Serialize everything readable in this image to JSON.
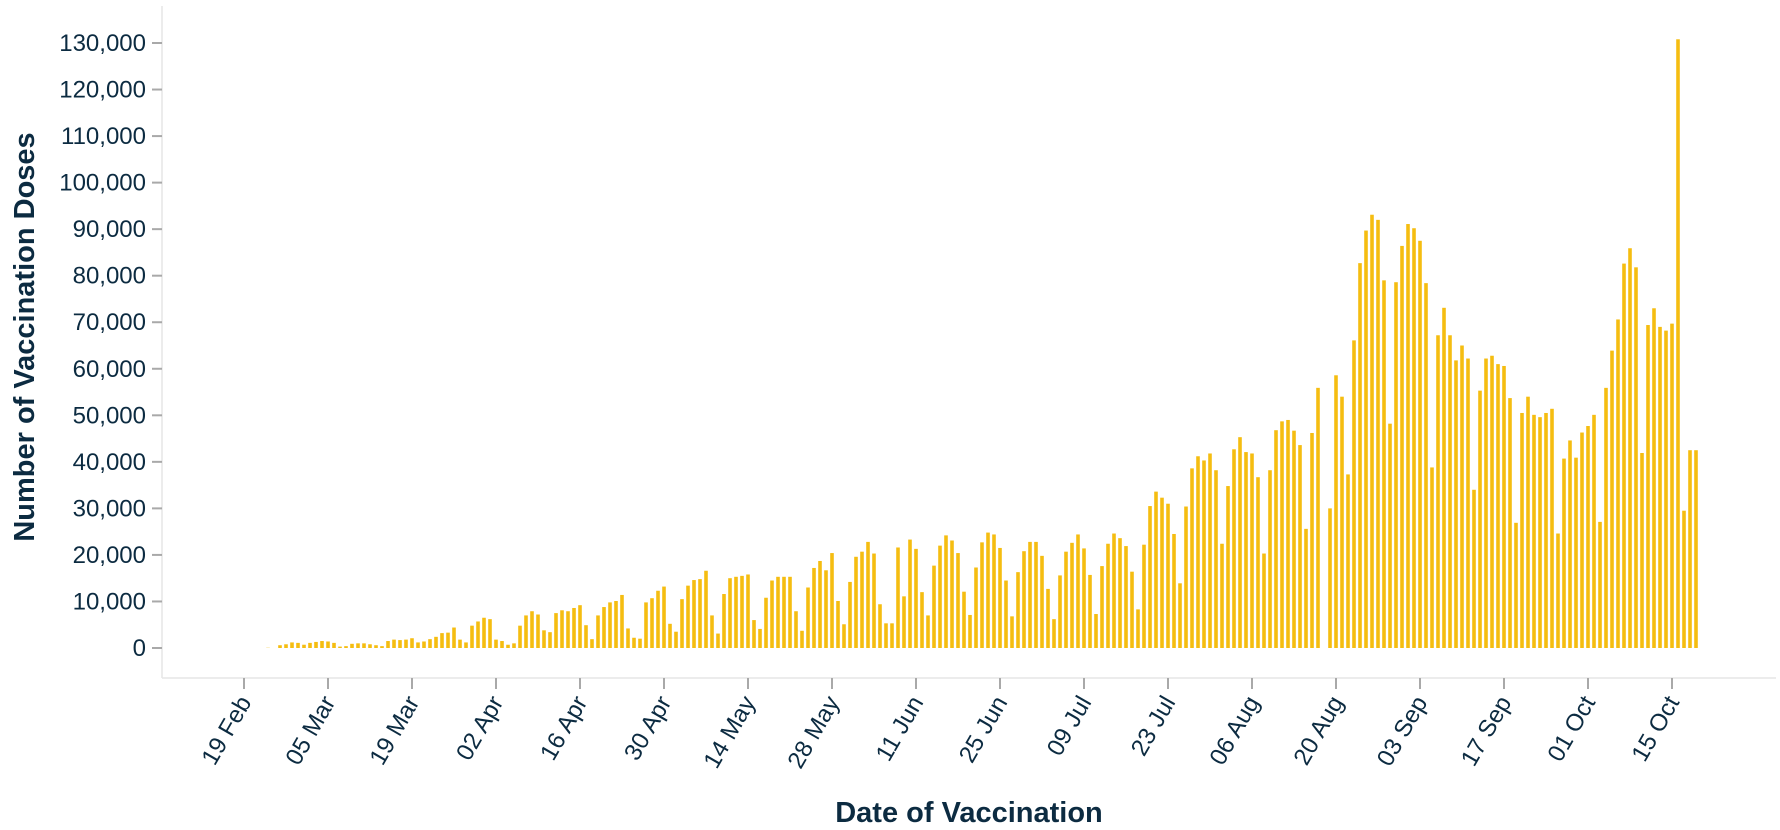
{
  "chart_data": {
    "type": "bar",
    "xlabel": "Date of Vaccination",
    "ylabel": "Number of Vaccination Doses",
    "ylim": [
      0,
      130000
    ],
    "y_ticks": [
      "0",
      "10,000",
      "20,000",
      "30,000",
      "40,000",
      "50,000",
      "60,000",
      "70,000",
      "80,000",
      "90,000",
      "100,000",
      "110,000",
      "120,000",
      "130,000"
    ],
    "x_ticks": [
      "19 Feb",
      "05 Mar",
      "19 Mar",
      "02 Apr",
      "16 Apr",
      "30 Apr",
      "14 May",
      "28 May",
      "11 Jun",
      "25 Jun",
      "09 Jul",
      "23 Jul",
      "06 Aug",
      "20 Aug",
      "03 Sep",
      "17 Sep",
      "01 Oct",
      "15 Oct"
    ],
    "x_start_date": "2021-02-19",
    "x_end_date": "2021-10-20",
    "grid": false,
    "bar_color": "#f5bd11",
    "text_color": "#0c2b41",
    "values": [
      0,
      0,
      0,
      0,
      50,
      0,
      600,
      800,
      1200,
      1100,
      700,
      1100,
      1300,
      1500,
      1400,
      1100,
      300,
      400,
      900,
      1000,
      1000,
      800,
      600,
      400,
      1500,
      1800,
      1700,
      1800,
      2100,
      1200,
      1400,
      1900,
      2400,
      3200,
      3300,
      4400,
      1800,
      1200,
      4800,
      5700,
      6500,
      6200,
      1800,
      1500,
      700,
      1000,
      4800,
      7000,
      7900,
      7200,
      3800,
      3400,
      7500,
      8100,
      7900,
      8600,
      9200,
      4900,
      1900,
      7000,
      8800,
      9800,
      10100,
      11400,
      4200,
      2200,
      2000,
      9800,
      10700,
      12300,
      13200,
      5200,
      3500,
      10500,
      13400,
      14600,
      14800,
      16600,
      7000,
      3100,
      11600,
      15000,
      15300,
      15500,
      15800,
      6000,
      4100,
      10800,
      14500,
      15300,
      15300,
      15300,
      7900,
      3700,
      13000,
      17200,
      18700,
      16700,
      20400,
      10100,
      5100,
      14200,
      19600,
      20700,
      22800,
      20300,
      9400,
      5300,
      5300,
      21600,
      11100,
      23300,
      21300,
      12000,
      7000,
      17700,
      22000,
      24200,
      23100,
      20400,
      12100,
      7100,
      17300,
      22700,
      24800,
      24400,
      21500,
      14500,
      6800,
      16300,
      20800,
      22800,
      22800,
      19800,
      12700,
      6200,
      15600,
      20700,
      22600,
      24400,
      21400,
      15700,
      7300,
      17600,
      22400,
      24600,
      23600,
      21900,
      16400,
      8300,
      22200,
      30500,
      33600,
      32300,
      31000,
      24500,
      13900,
      30400,
      38600,
      41200,
      40300,
      41800,
      38200,
      22400,
      34800,
      42700,
      45300,
      42100,
      41800,
      36700,
      20300,
      38200,
      46800,
      48700,
      49000,
      46700,
      43600,
      25600,
      46200,
      55900,
      0,
      30000,
      58600,
      54000,
      37300,
      66100,
      82700,
      89700,
      93100,
      92000,
      79000,
      48200,
      78600,
      86400,
      91100,
      90200,
      87500,
      78400,
      38800,
      67200,
      73100,
      67200,
      61800,
      65000,
      62200,
      34000,
      55300,
      62200,
      62800,
      61000,
      60600,
      53700,
      26900,
      50500,
      54000,
      50100,
      49600,
      50500,
      51400,
      24600,
      40700,
      44600,
      40900,
      46300,
      47700,
      50100,
      27100,
      55900,
      63900,
      70600,
      82600,
      85900,
      81800,
      41900,
      69400,
      73000,
      69000,
      68200,
      69700,
      130800,
      29500,
      42500,
      42500
    ]
  }
}
